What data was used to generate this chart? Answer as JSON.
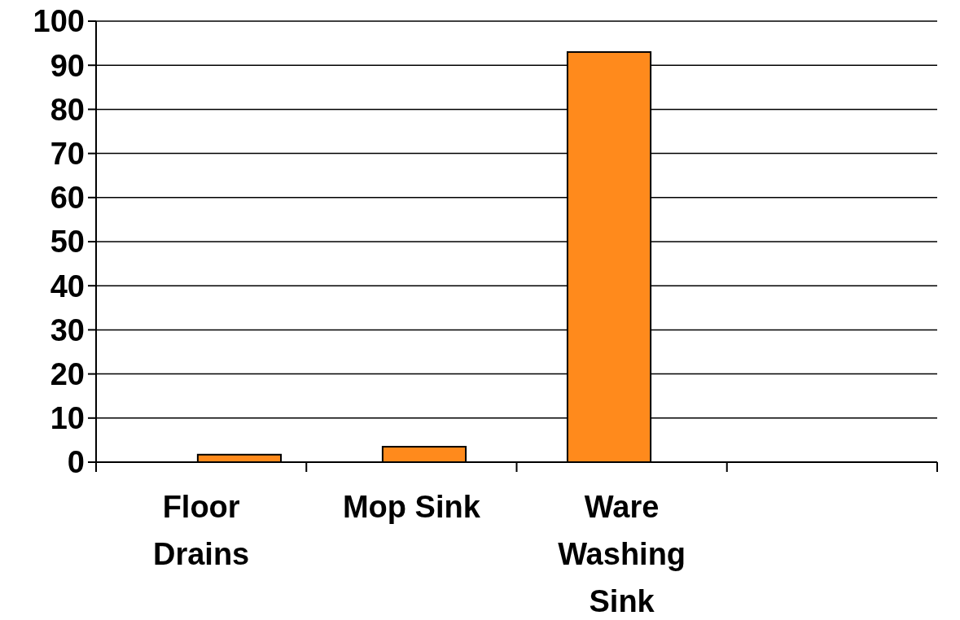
{
  "chart_data": {
    "type": "bar",
    "categories": [
      "Floor Drains",
      "Mop Sink",
      "Ware Washing Sink",
      null
    ],
    "values": [
      1.7,
      3.5,
      93,
      null
    ],
    "color": "#ff8a1c",
    "ylim": [
      0,
      100
    ],
    "yticks": [
      0,
      10,
      20,
      30,
      40,
      50,
      60,
      70,
      80,
      90,
      100
    ],
    "grid": "y"
  }
}
